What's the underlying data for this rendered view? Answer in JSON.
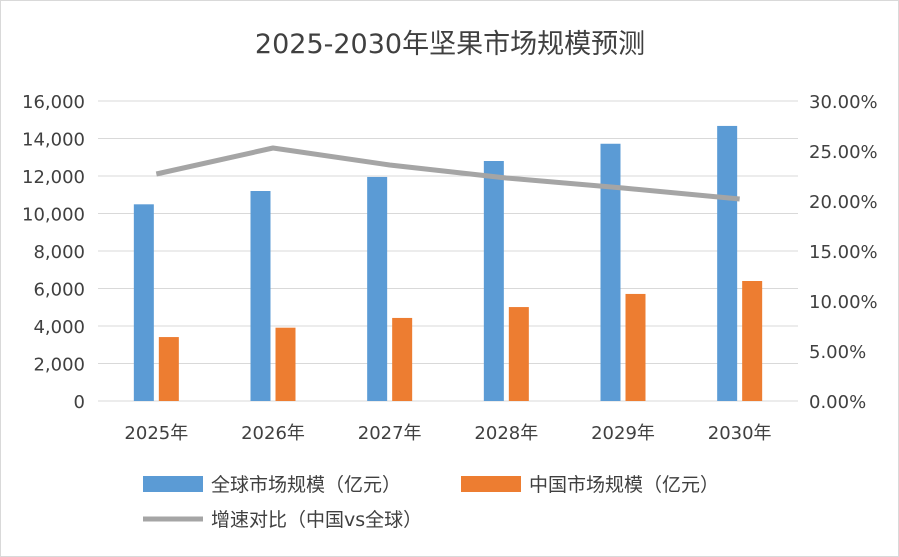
{
  "chart_data": {
    "type": "bar",
    "title": "2025-2030年坚果市场规模预测",
    "categories": [
      "2025年",
      "2026年",
      "2027年",
      "2028年",
      "2029年",
      "2030年"
    ],
    "series": [
      {
        "name": "全球市场规模（亿元）",
        "type": "bar",
        "axis": "left",
        "color": "#5b9bd5",
        "values": [
          10490,
          11200,
          11950,
          12800,
          13720,
          14670
        ]
      },
      {
        "name": "中国市场规模（亿元）",
        "type": "bar",
        "axis": "left",
        "color": "#ed7d31",
        "values": [
          3410,
          3910,
          4430,
          5010,
          5710,
          6400
        ]
      },
      {
        "name": "增速对比（中国vs全球）",
        "type": "line",
        "axis": "right",
        "color": "#a5a5a5",
        "values": [
          22.7,
          25.3,
          23.6,
          22.3,
          21.3,
          20.2
        ]
      }
    ],
    "left_axis": {
      "ylim": [
        0,
        16000
      ],
      "ticks": [
        "0",
        "2,000",
        "4,000",
        "6,000",
        "8,000",
        "10,000",
        "12,000",
        "14,000",
        "16,000"
      ]
    },
    "right_axis": {
      "ylim": [
        0,
        30
      ],
      "ticks": [
        "0.00%",
        "5.00%",
        "10.00%",
        "15.00%",
        "20.00%",
        "25.00%",
        "30.00%"
      ]
    },
    "grid": true,
    "legend": "bottom"
  }
}
